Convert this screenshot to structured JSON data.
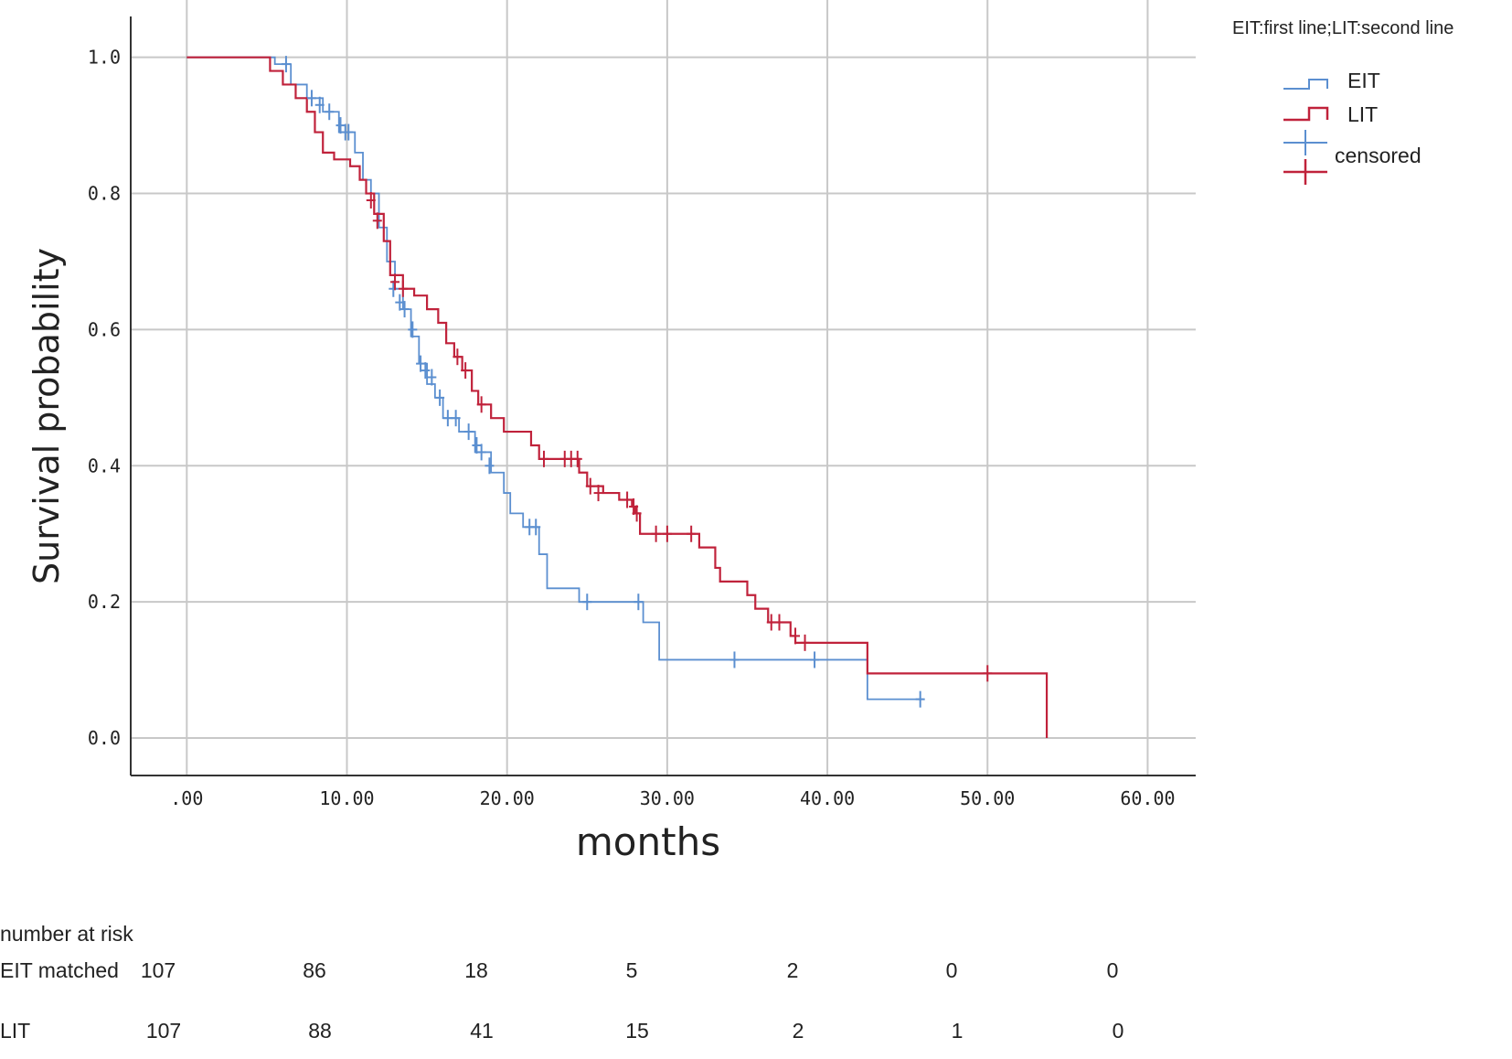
{
  "chart_data": {
    "type": "line",
    "subtype": "kaplan-meier step curves",
    "title": "",
    "xlabel": "months",
    "ylabel": "Survival probability",
    "xlim": [
      -3.5,
      63
    ],
    "ylim": [
      -0.055,
      1.06
    ],
    "x_ticks": [
      0,
      10,
      20,
      30,
      40,
      50,
      60
    ],
    "x_tick_labels": [
      ".00",
      "10.00",
      "20.00",
      "30.00",
      "40.00",
      "50.00",
      "60.00"
    ],
    "y_ticks": [
      0,
      0.2,
      0.4,
      0.6,
      0.8,
      1.0
    ],
    "y_tick_labels": [
      "0.0",
      "0.2",
      "0.4",
      "0.6",
      "0.8",
      "1.0"
    ],
    "grid": true,
    "legend": {
      "title": "EIT:first line;LIT:second line",
      "position": "top-right",
      "entries": [
        "EIT",
        "LIT",
        "censored"
      ]
    },
    "series": [
      {
        "name": "EIT",
        "color": "#5b8fd0",
        "steps": [
          [
            0,
            1.0
          ],
          [
            5.5,
            0.99
          ],
          [
            6.5,
            0.96
          ],
          [
            7.5,
            0.94
          ],
          [
            8.5,
            0.92
          ],
          [
            9.5,
            0.89
          ],
          [
            10.5,
            0.86
          ],
          [
            11,
            0.82
          ],
          [
            11.5,
            0.8
          ],
          [
            12,
            0.75
          ],
          [
            12.5,
            0.7
          ],
          [
            13,
            0.66
          ],
          [
            13.5,
            0.63
          ],
          [
            14,
            0.59
          ],
          [
            14.5,
            0.55
          ],
          [
            15,
            0.52
          ],
          [
            15.5,
            0.5
          ],
          [
            16,
            0.47
          ],
          [
            17,
            0.45
          ],
          [
            18,
            0.42
          ],
          [
            19,
            0.39
          ],
          [
            19.8,
            0.36
          ],
          [
            20.2,
            0.33
          ],
          [
            21,
            0.31
          ],
          [
            22,
            0.27
          ],
          [
            22.5,
            0.22
          ],
          [
            24.5,
            0.2
          ],
          [
            28.5,
            0.17
          ],
          [
            29.5,
            0.115
          ],
          [
            42.5,
            0.057
          ],
          [
            46,
            0.057
          ]
        ],
        "censored": [
          [
            6.2,
            0.99
          ],
          [
            7.8,
            0.94
          ],
          [
            8.3,
            0.93
          ],
          [
            8.9,
            0.92
          ],
          [
            9.6,
            0.9
          ],
          [
            9.9,
            0.89
          ],
          [
            10.1,
            0.89
          ],
          [
            12.9,
            0.66
          ],
          [
            13.3,
            0.64
          ],
          [
            13.6,
            0.63
          ],
          [
            14.1,
            0.6
          ],
          [
            14.6,
            0.55
          ],
          [
            14.9,
            0.54
          ],
          [
            15.3,
            0.53
          ],
          [
            15.8,
            0.5
          ],
          [
            16.3,
            0.47
          ],
          [
            16.8,
            0.47
          ],
          [
            17.6,
            0.45
          ],
          [
            18.1,
            0.43
          ],
          [
            18.4,
            0.42
          ],
          [
            18.9,
            0.4
          ],
          [
            21.4,
            0.31
          ],
          [
            21.8,
            0.31
          ],
          [
            25,
            0.2
          ],
          [
            28.2,
            0.2
          ],
          [
            34.2,
            0.115
          ],
          [
            39.2,
            0.115
          ],
          [
            45.8,
            0.057
          ]
        ]
      },
      {
        "name": "LIT",
        "color": "#c0223b",
        "steps": [
          [
            0,
            1.0
          ],
          [
            5.2,
            0.98
          ],
          [
            6,
            0.96
          ],
          [
            6.8,
            0.94
          ],
          [
            7.5,
            0.92
          ],
          [
            8,
            0.89
          ],
          [
            8.5,
            0.86
          ],
          [
            9.2,
            0.85
          ],
          [
            10.2,
            0.84
          ],
          [
            10.8,
            0.82
          ],
          [
            11.2,
            0.8
          ],
          [
            11.7,
            0.77
          ],
          [
            12.3,
            0.73
          ],
          [
            12.7,
            0.68
          ],
          [
            13.5,
            0.66
          ],
          [
            14.2,
            0.65
          ],
          [
            15,
            0.63
          ],
          [
            15.7,
            0.61
          ],
          [
            16.2,
            0.58
          ],
          [
            16.7,
            0.56
          ],
          [
            17.2,
            0.54
          ],
          [
            17.8,
            0.51
          ],
          [
            18.2,
            0.49
          ],
          [
            19,
            0.47
          ],
          [
            19.8,
            0.45
          ],
          [
            21.5,
            0.43
          ],
          [
            22,
            0.41
          ],
          [
            24.5,
            0.39
          ],
          [
            25,
            0.37
          ],
          [
            26,
            0.36
          ],
          [
            27,
            0.35
          ],
          [
            27.8,
            0.34
          ],
          [
            28,
            0.33
          ],
          [
            28.3,
            0.3
          ],
          [
            32,
            0.28
          ],
          [
            33,
            0.25
          ],
          [
            33.3,
            0.23
          ],
          [
            35,
            0.21
          ],
          [
            35.5,
            0.19
          ],
          [
            36.3,
            0.17
          ],
          [
            37.7,
            0.15
          ],
          [
            38,
            0.14
          ],
          [
            42.5,
            0.095
          ],
          [
            53.7,
            0.095
          ],
          [
            53.7,
            0.0
          ]
        ],
        "censored": [
          [
            11.5,
            0.79
          ],
          [
            11.9,
            0.76
          ],
          [
            13,
            0.67
          ],
          [
            13.5,
            0.66
          ],
          [
            16.9,
            0.56
          ],
          [
            17.4,
            0.54
          ],
          [
            18.4,
            0.49
          ],
          [
            22.3,
            0.41
          ],
          [
            23.6,
            0.41
          ],
          [
            24,
            0.41
          ],
          [
            24.4,
            0.41
          ],
          [
            25.2,
            0.37
          ],
          [
            25.7,
            0.36
          ],
          [
            27.5,
            0.35
          ],
          [
            27.9,
            0.34
          ],
          [
            28.1,
            0.33
          ],
          [
            29.3,
            0.3
          ],
          [
            30,
            0.3
          ],
          [
            31.5,
            0.3
          ],
          [
            36.5,
            0.17
          ],
          [
            37,
            0.17
          ],
          [
            38,
            0.15
          ],
          [
            38.6,
            0.14
          ],
          [
            50,
            0.095
          ]
        ]
      }
    ]
  },
  "risk_table": {
    "title": "number at risk",
    "rows": [
      {
        "label": "EIT matched",
        "values": [
          "107",
          "86",
          "18",
          "5",
          "2",
          "0",
          "0"
        ]
      },
      {
        "label": "LIT",
        "values": [
          "107",
          "88",
          "41",
          "15",
          "2",
          "1",
          "0"
        ]
      }
    ]
  }
}
